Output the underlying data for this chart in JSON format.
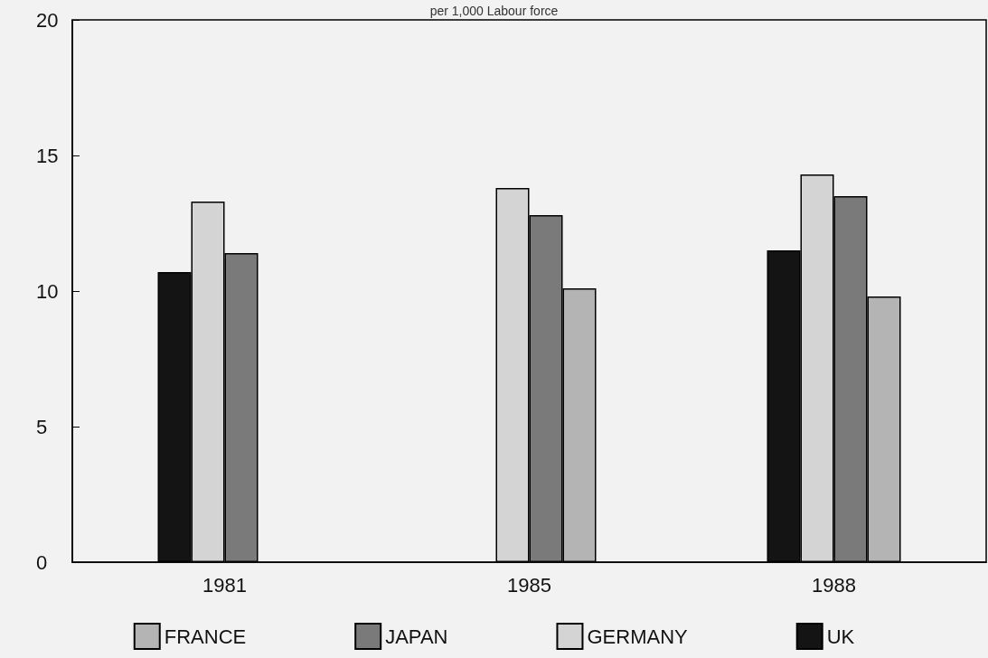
{
  "chart_data": {
    "type": "bar",
    "title": "per 1,000 Labour force",
    "categories": [
      "1981",
      "1985",
      "1988"
    ],
    "series": [
      {
        "name": "UK",
        "color": "#141414",
        "values": [
          10.7,
          null,
          11.5
        ]
      },
      {
        "name": "GERMANY",
        "color": "#d4d4d4",
        "values": [
          13.3,
          13.8,
          14.3
        ]
      },
      {
        "name": "JAPAN",
        "color": "#7a7a7a",
        "values": [
          11.4,
          12.8,
          13.5
        ]
      },
      {
        "name": "FRANCE",
        "color": "#b4b4b4",
        "values": [
          null,
          10.1,
          9.8
        ]
      }
    ],
    "ylim": [
      0,
      20
    ],
    "yticks": [
      0,
      5,
      10,
      15,
      20
    ],
    "grid": false,
    "legend": "bottom"
  }
}
